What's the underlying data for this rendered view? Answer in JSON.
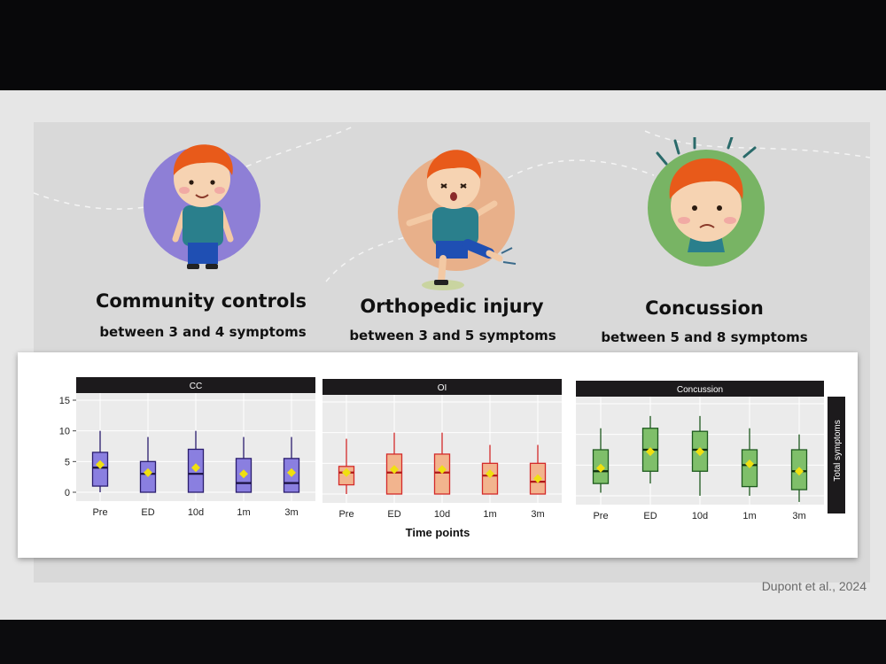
{
  "groups": [
    {
      "title": "Community controls",
      "subtitle": "between 3 and 4 symptoms",
      "color": "#8e7fd6"
    },
    {
      "title": "Orthopedic injury",
      "subtitle": "between 3 and 5 symptoms",
      "color": "#e8b08a"
    },
    {
      "title": "Concussion",
      "subtitle": "between 5 and 8 symptoms",
      "color": "#78b464"
    }
  ],
  "citation": "Dupont et al., 2024",
  "chart_data": {
    "type": "box",
    "xlabel": "Time points",
    "ylabel": "Total symptoms",
    "ylim": [
      0,
      15
    ],
    "y_ticks": [
      "0",
      "5",
      "10",
      "15"
    ],
    "categories": [
      "Pre",
      "ED",
      "10d",
      "1m",
      "3m"
    ],
    "panels": [
      {
        "name": "CC",
        "fill": "#8a7fe0",
        "line": "#2a1d6e",
        "median_color": "#1a1140",
        "boxes": [
          {
            "min": 0,
            "q1": 1,
            "median": 4,
            "q3": 6.5,
            "max": 10,
            "mean": 4.5
          },
          {
            "min": 0,
            "q1": 0,
            "median": 3,
            "q3": 5,
            "max": 9,
            "mean": 3.2
          },
          {
            "min": 0,
            "q1": 0,
            "median": 3,
            "q3": 7,
            "max": 10,
            "mean": 4
          },
          {
            "min": 0,
            "q1": 0,
            "median": 1.5,
            "q3": 5.5,
            "max": 9,
            "mean": 3
          },
          {
            "min": 0,
            "q1": 0,
            "median": 1.5,
            "q3": 5.5,
            "max": 9,
            "mean": 3.2
          }
        ]
      },
      {
        "name": "OI",
        "fill": "#f2b48e",
        "line": "#d42a2a",
        "median_color": "#b01818",
        "boxes": [
          {
            "min": 0,
            "q1": 1.5,
            "median": 3.5,
            "q3": 4.5,
            "max": 9,
            "mean": 3.5
          },
          {
            "min": 0,
            "q1": 0,
            "median": 3.5,
            "q3": 6.5,
            "max": 10,
            "mean": 4
          },
          {
            "min": 0,
            "q1": 0,
            "median": 3.5,
            "q3": 6.5,
            "max": 10,
            "mean": 4
          },
          {
            "min": 0,
            "q1": 0,
            "median": 3,
            "q3": 5,
            "max": 8,
            "mean": 3.3
          },
          {
            "min": 0,
            "q1": 0,
            "median": 2,
            "q3": 5,
            "max": 8,
            "mean": 2.5
          }
        ]
      },
      {
        "name": "Concussion",
        "fill": "#7fbf6a",
        "line": "#1e5a1e",
        "median_color": "#0f2e0f",
        "boxes": [
          {
            "min": 0.5,
            "q1": 2,
            "median": 4,
            "q3": 7.5,
            "max": 11,
            "mean": 4.5
          },
          {
            "min": 2,
            "q1": 4,
            "median": 7.5,
            "q3": 11,
            "max": 13,
            "mean": 7.2
          },
          {
            "min": 0,
            "q1": 4,
            "median": 7.5,
            "q3": 10.5,
            "max": 13,
            "mean": 7.2
          },
          {
            "min": 0,
            "q1": 1.5,
            "median": 5,
            "q3": 7.5,
            "max": 11,
            "mean": 5.2
          },
          {
            "min": -1,
            "q1": 1,
            "median": 4,
            "q3": 7.5,
            "max": 10,
            "mean": 4
          }
        ]
      }
    ],
    "mean_marker_color": "#f0e010"
  }
}
